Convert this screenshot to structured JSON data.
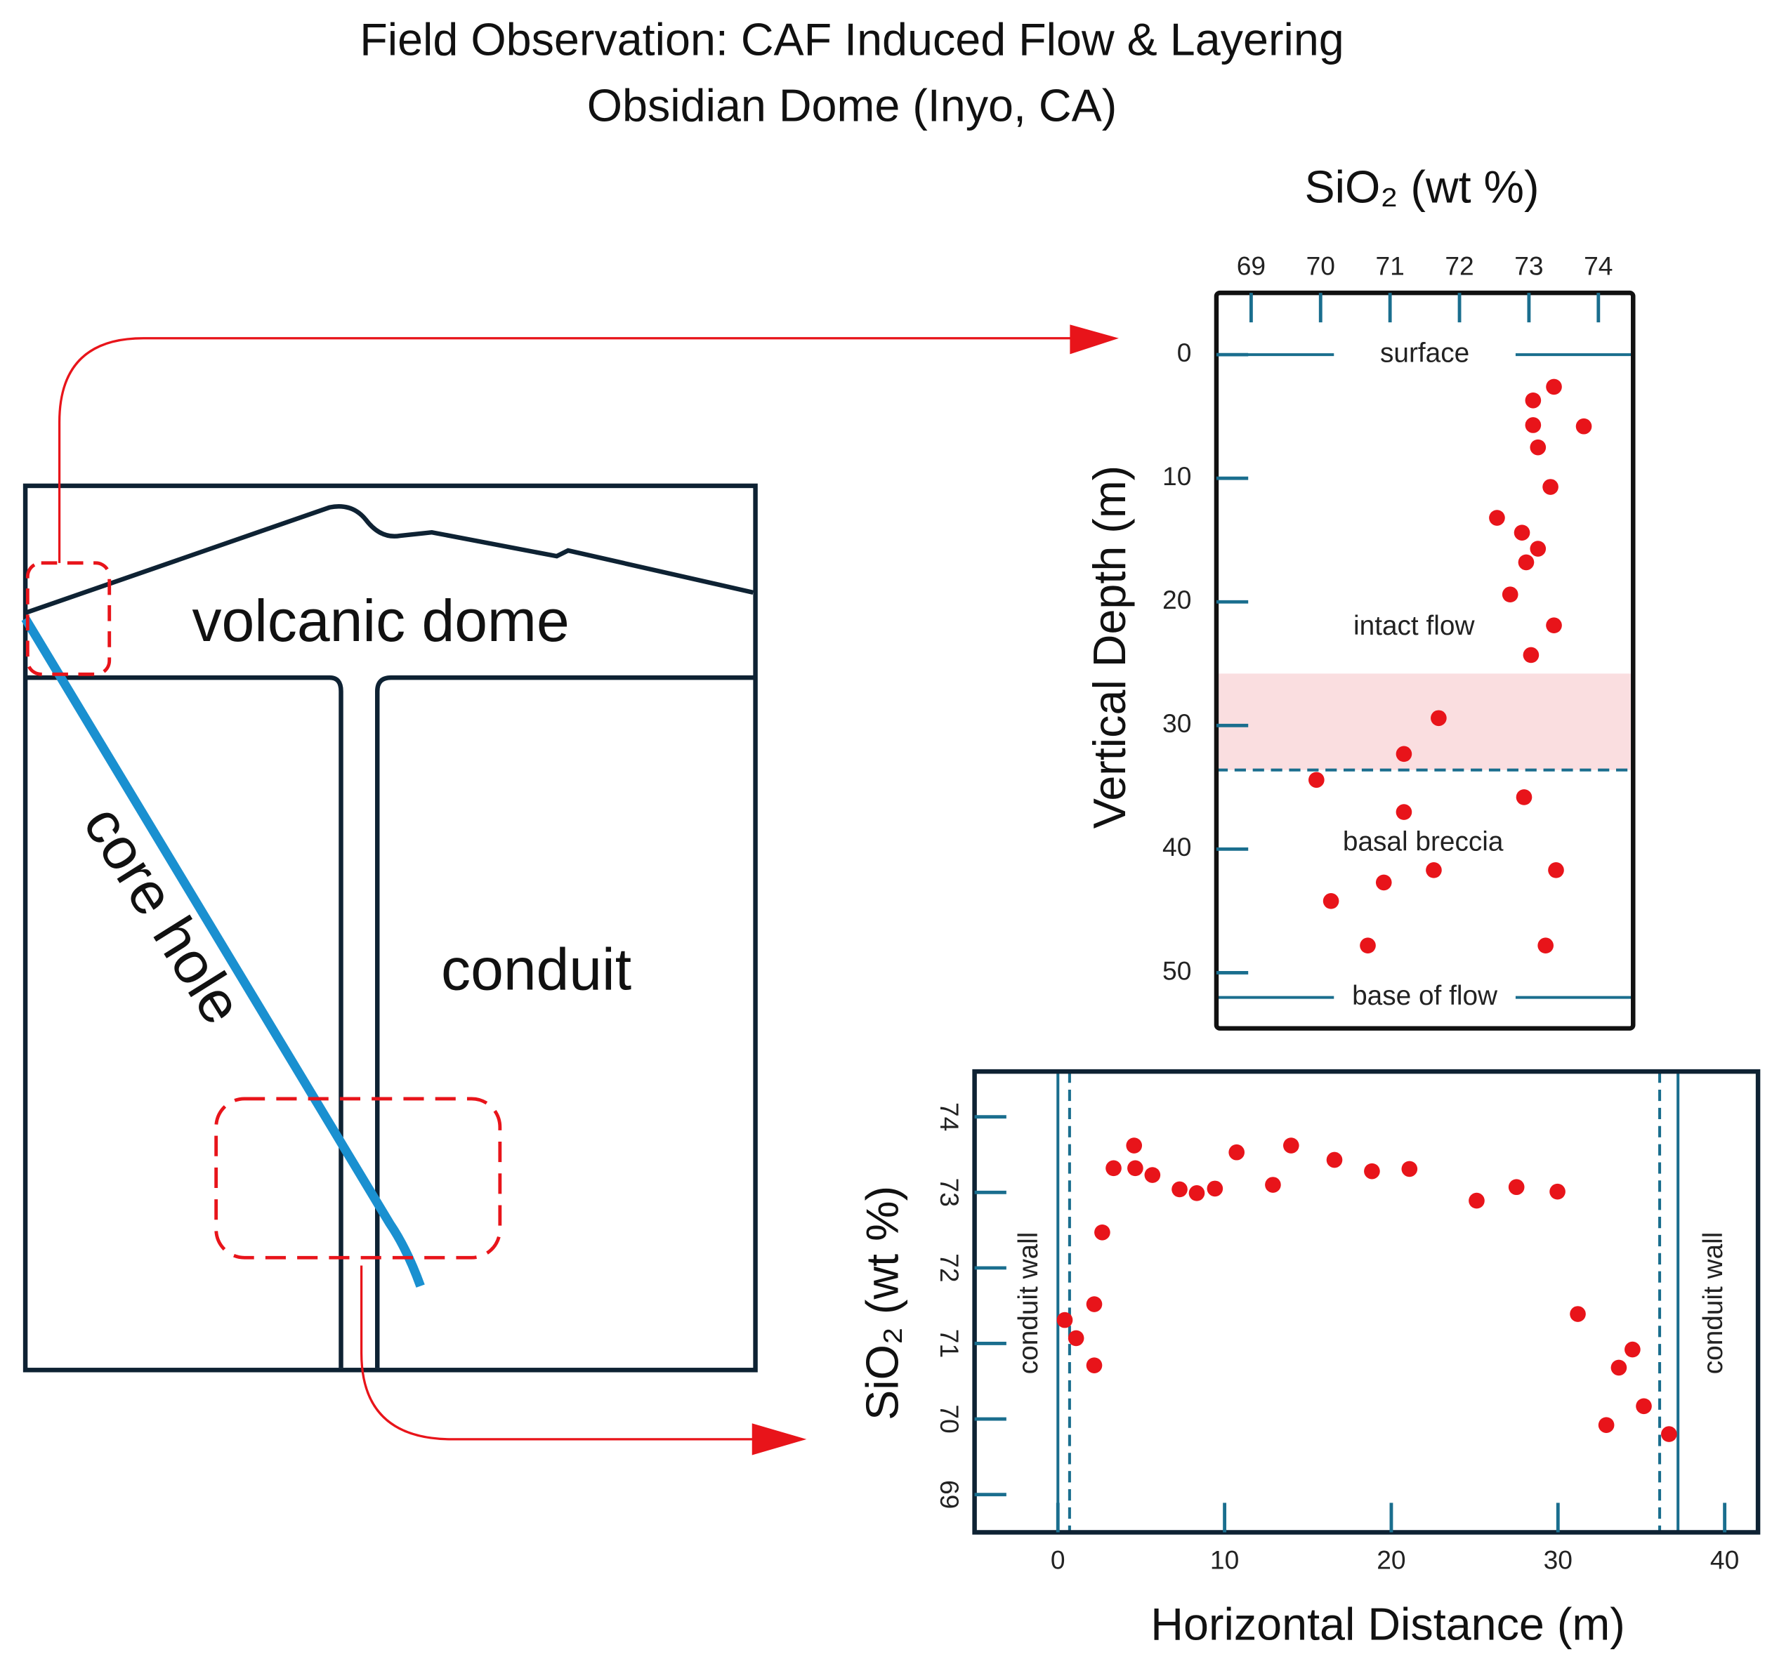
{
  "title": [
    "Field Observation: CAF Induced Flow & Layering",
    "Obsidian Dome (Inyo, CA)"
  ],
  "diagram": {
    "labels": [
      "volcanic dome",
      "conduit",
      "core hole"
    ]
  },
  "chart_data": [
    {
      "type": "scatter",
      "x_axis_position": "top",
      "x_label": "SiO₂ (wt %)",
      "y_label": "Vertical Depth (m)",
      "xlim": [
        68.5,
        74.5
      ],
      "xticks": [
        69,
        70,
        71,
        72,
        73,
        74
      ],
      "ylim": [
        54.5,
        -5
      ],
      "yticks": [
        0,
        10,
        20,
        30,
        40,
        50
      ],
      "color": "#e8141a",
      "x": [
        73.36,
        73.06,
        73.79,
        73.06,
        73.13,
        73.31,
        72.54,
        72.9,
        73.13,
        72.96,
        72.73,
        73.36,
        73.03,
        71.7,
        71.2,
        69.94,
        72.93,
        71.2,
        73.39,
        71.63,
        70.91,
        70.15,
        70.68,
        73.24
      ],
      "values": [
        2.6,
        3.7,
        5.8,
        5.7,
        7.5,
        10.7,
        13.2,
        14.4,
        15.7,
        16.8,
        19.4,
        21.9,
        24.3,
        29.4,
        32.3,
        34.4,
        35.8,
        37.0,
        41.7,
        41.7,
        42.7,
        44.2,
        47.8,
        47.8
      ],
      "hlines": [
        {
          "value": 0,
          "label": "surface"
        },
        {
          "value": 52,
          "label": "base of flow"
        }
      ],
      "band": [
        25.8,
        33.6
      ],
      "annotations": [
        "intact flow",
        "basal breccia"
      ]
    },
    {
      "type": "scatter",
      "x_axis_position": "bottom",
      "x_label": "Horizontal Distance (m)",
      "y_label": "SiO₂ (wt %)",
      "xlim": [
        -5,
        42
      ],
      "xticks": [
        0,
        10,
        20,
        30,
        40
      ],
      "ylim": [
        68.5,
        74.6
      ],
      "yticks": [
        69,
        70,
        71,
        72,
        73,
        74
      ],
      "color": "#e8141a",
      "x": [
        0.41,
        1.09,
        2.18,
        2.18,
        2.66,
        3.34,
        4.57,
        4.64,
        5.67,
        7.3,
        8.33,
        9.42,
        10.72,
        12.9,
        13.99,
        16.59,
        18.84,
        21.09,
        25.12,
        27.51,
        29.97,
        31.19,
        33.65,
        34.47,
        35.15,
        32.9,
        36.66
      ],
      "values": [
        71.31,
        71.07,
        70.71,
        71.52,
        72.47,
        73.32,
        73.62,
        73.32,
        73.23,
        73.04,
        72.99,
        73.05,
        73.53,
        73.1,
        73.62,
        73.43,
        73.28,
        73.31,
        72.89,
        73.07,
        73.01,
        71.39,
        70.68,
        70.92,
        70.17,
        69.92,
        69.8
      ],
      "vlines": [
        {
          "value": 0,
          "style": "solid"
        },
        {
          "value": 0.7,
          "style": "dashed"
        },
        {
          "value": 36.1,
          "style": "dashed"
        },
        {
          "value": 37.2,
          "style": "solid"
        }
      ],
      "annotations": [
        "conduit wall",
        "conduit wall"
      ]
    }
  ]
}
